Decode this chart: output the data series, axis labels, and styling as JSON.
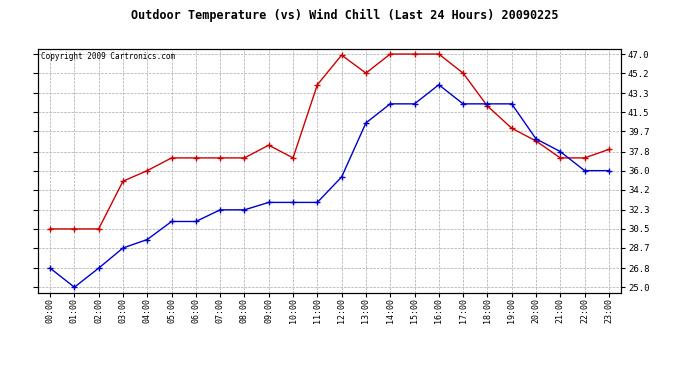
{
  "title": "Outdoor Temperature (vs) Wind Chill (Last 24 Hours) 20090225",
  "copyright": "Copyright 2009 Cartronics.com",
  "hours": [
    "00:00",
    "01:00",
    "02:00",
    "03:00",
    "04:00",
    "05:00",
    "06:00",
    "07:00",
    "08:00",
    "09:00",
    "10:00",
    "11:00",
    "12:00",
    "13:00",
    "14:00",
    "15:00",
    "16:00",
    "17:00",
    "18:00",
    "19:00",
    "20:00",
    "21:00",
    "22:00",
    "23:00"
  ],
  "temp": [
    30.5,
    30.5,
    30.5,
    35.0,
    36.0,
    37.2,
    37.2,
    37.2,
    37.2,
    38.4,
    37.2,
    44.1,
    46.9,
    45.2,
    47.0,
    47.0,
    47.0,
    45.2,
    42.1,
    40.0,
    38.8,
    37.2,
    37.2,
    38.0
  ],
  "wind_chill": [
    26.8,
    25.0,
    26.8,
    28.7,
    29.5,
    31.2,
    31.2,
    32.3,
    32.3,
    33.0,
    33.0,
    33.0,
    35.4,
    40.5,
    42.3,
    42.3,
    44.1,
    42.3,
    42.3,
    42.3,
    39.0,
    37.8,
    36.0,
    36.0
  ],
  "temp_color": "#cc0000",
  "wind_chill_color": "#0000cc",
  "bg_color": "#ffffff",
  "plot_bg": "#ffffff",
  "grid_color": "#aaaaaa",
  "yticks": [
    25.0,
    26.8,
    28.7,
    30.5,
    32.3,
    34.2,
    36.0,
    37.8,
    39.7,
    41.5,
    43.3,
    45.2,
    47.0
  ],
  "ylim": [
    24.5,
    47.5
  ],
  "figwidth": 6.9,
  "figheight": 3.75,
  "dpi": 100
}
